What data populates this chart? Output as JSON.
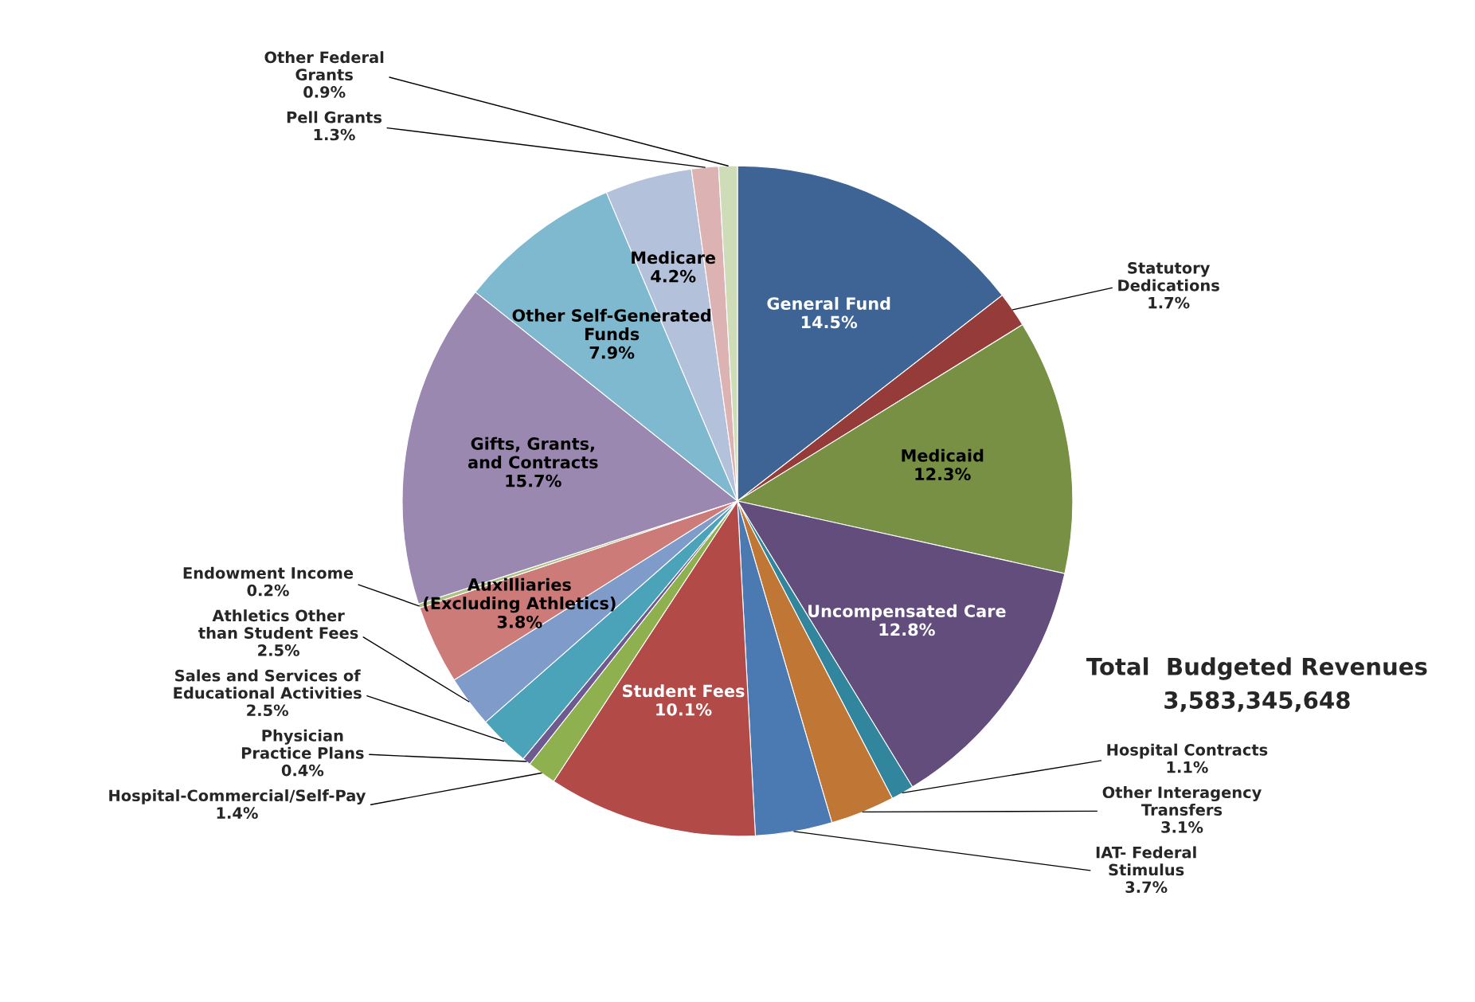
{
  "chart_data": {
    "type": "pie",
    "categories": [
      "General Fund",
      "Statutory Dedications",
      "Medicaid",
      "Uncompensated Care",
      "Hospital Contracts",
      "Other Interagency Transfers",
      "IAT- Federal Stimulus",
      "Student Fees",
      "Hospital-Commercial/Self-Pay",
      "Physician Practice Plans",
      "Sales and Services of Educational Activities",
      "Athletics Other than Student Fees",
      "Auxilliaries (Excluding Athletics)",
      "Endowment Income",
      "Gifts, Grants, and Contracts",
      "Other Self-Generated Funds",
      "Medicare",
      "Pell Grants",
      "Other Federal Grants"
    ],
    "values": [
      14.5,
      1.7,
      12.3,
      12.8,
      1.1,
      3.1,
      3.7,
      10.1,
      1.4,
      0.4,
      2.5,
      2.5,
      3.8,
      0.2,
      15.7,
      7.9,
      4.2,
      1.3,
      0.9
    ],
    "value_labels": [
      "14.5%",
      "1.7%",
      "12.3%",
      "12.8%",
      "1.1%",
      "3.1%",
      "3.7%",
      "10.1%",
      "1.4%",
      "0.4%",
      "2.5%",
      "2.5%",
      "3.8%",
      "0.2%",
      "15.7%",
      "7.9%",
      "4.2%",
      "1.3%",
      "0.9%"
    ],
    "colors": [
      "#3d6495",
      "#953b39",
      "#779043",
      "#624d7d",
      "#31859c",
      "#c07634",
      "#4a7ab1",
      "#b24a48",
      "#8fb04f",
      "#6e5a91",
      "#4ba3ba",
      "#7e9bc9",
      "#cc7b79",
      "#abc282",
      "#9b88b1",
      "#7fb9cf",
      "#b4c1db",
      "#ddb2b2",
      "#ceddb7"
    ],
    "annotations": [
      "Total  Budgeted Revenues",
      "3,583,345,648"
    ],
    "legend": false
  }
}
